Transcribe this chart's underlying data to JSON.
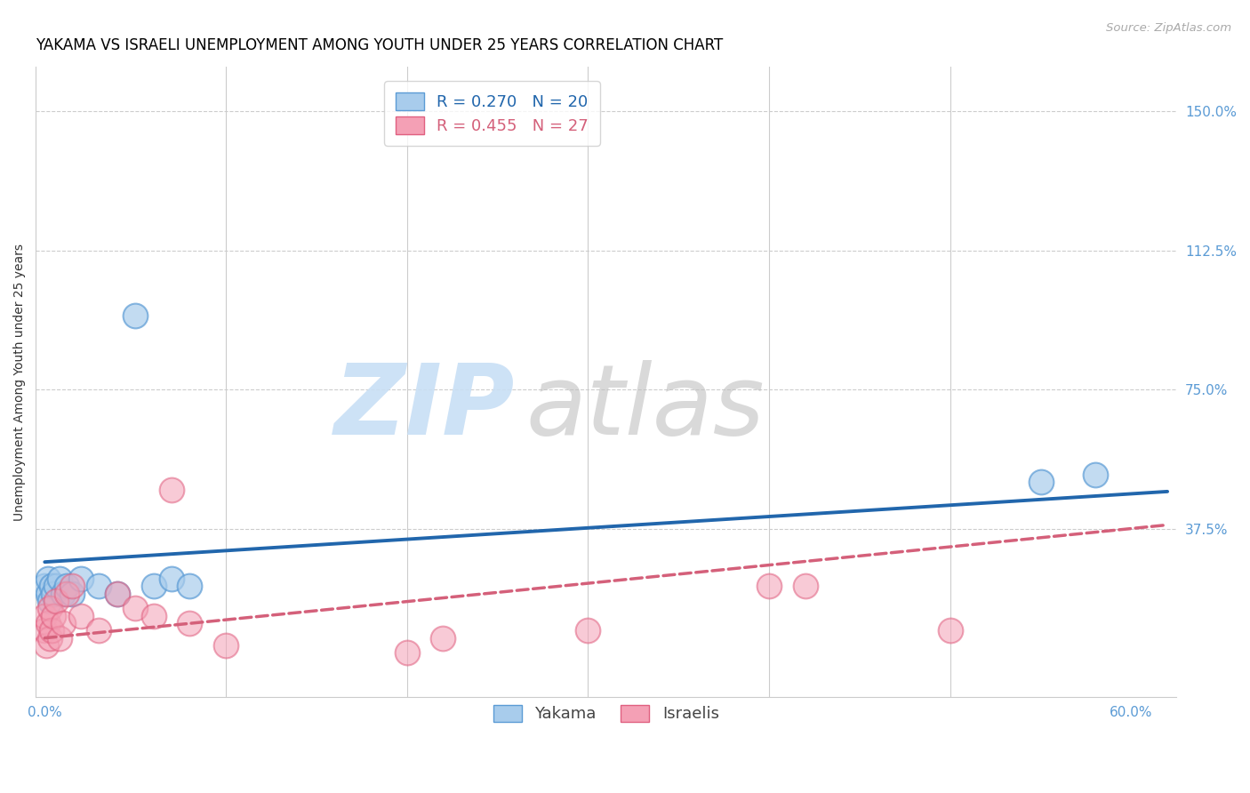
{
  "title": "YAKAMA VS ISRAELI UNEMPLOYMENT AMONG YOUTH UNDER 25 YEARS CORRELATION CHART",
  "source": "Source: ZipAtlas.com",
  "ylabel": "Unemployment Among Youth under 25 years",
  "x_ticks": [
    0.0,
    0.6
  ],
  "x_tick_labels": [
    "0.0%",
    "60.0%"
  ],
  "y_ticks": [
    0.375,
    0.75,
    1.125,
    1.5
  ],
  "y_tick_labels": [
    "37.5%",
    "75.0%",
    "112.5%",
    "150.0%"
  ],
  "xlim": [
    -0.005,
    0.625
  ],
  "ylim": [
    -0.08,
    1.62
  ],
  "legend_blue_r": "R = 0.270",
  "legend_blue_n": "N = 20",
  "legend_pink_r": "R = 0.455",
  "legend_pink_n": "N = 27",
  "legend_blue_label": "Yakama",
  "legend_pink_label": "Israelis",
  "blue_scatter_color": "#a8ccec",
  "blue_edge_color": "#5b9bd5",
  "pink_scatter_color": "#f4a0b5",
  "pink_edge_color": "#e06080",
  "blue_line_color": "#2166ac",
  "pink_line_color": "#d4607a",
  "watermark_zip_color": "#c8dff5",
  "watermark_atlas_color": "#c0c0c0",
  "background_color": "#ffffff",
  "grid_color": "#cccccc",
  "tick_label_color": "#5b9bd5",
  "title_fontsize": 12,
  "axis_label_fontsize": 10,
  "tick_fontsize": 11,
  "yakama_x": [
    0.0,
    0.002,
    0.002,
    0.003,
    0.004,
    0.005,
    0.006,
    0.008,
    0.01,
    0.012,
    0.015,
    0.02,
    0.03,
    0.04,
    0.05,
    0.06,
    0.07,
    0.08,
    0.55,
    0.58
  ],
  "yakama_y": [
    0.22,
    0.2,
    0.24,
    0.18,
    0.22,
    0.2,
    0.22,
    0.24,
    0.2,
    0.22,
    0.2,
    0.24,
    0.22,
    0.2,
    0.95,
    0.22,
    0.24,
    0.22,
    0.5,
    0.52
  ],
  "israeli_x": [
    0.0,
    0.0,
    0.001,
    0.002,
    0.003,
    0.003,
    0.004,
    0.005,
    0.006,
    0.008,
    0.01,
    0.012,
    0.015,
    0.02,
    0.03,
    0.04,
    0.05,
    0.06,
    0.07,
    0.08,
    0.1,
    0.2,
    0.22,
    0.3,
    0.4,
    0.42,
    0.5
  ],
  "israeli_y": [
    0.1,
    0.14,
    0.06,
    0.12,
    0.08,
    0.16,
    0.1,
    0.14,
    0.18,
    0.08,
    0.12,
    0.2,
    0.22,
    0.14,
    0.1,
    0.2,
    0.16,
    0.14,
    0.48,
    0.12,
    0.06,
    0.04,
    0.08,
    0.1,
    0.22,
    0.22,
    0.1
  ],
  "blue_line_x0": 0.0,
  "blue_line_y0": 0.285,
  "blue_line_x1": 0.62,
  "blue_line_y1": 0.475,
  "pink_line_x0": 0.0,
  "pink_line_y0": 0.08,
  "pink_line_x1": 0.62,
  "pink_line_y1": 0.385
}
